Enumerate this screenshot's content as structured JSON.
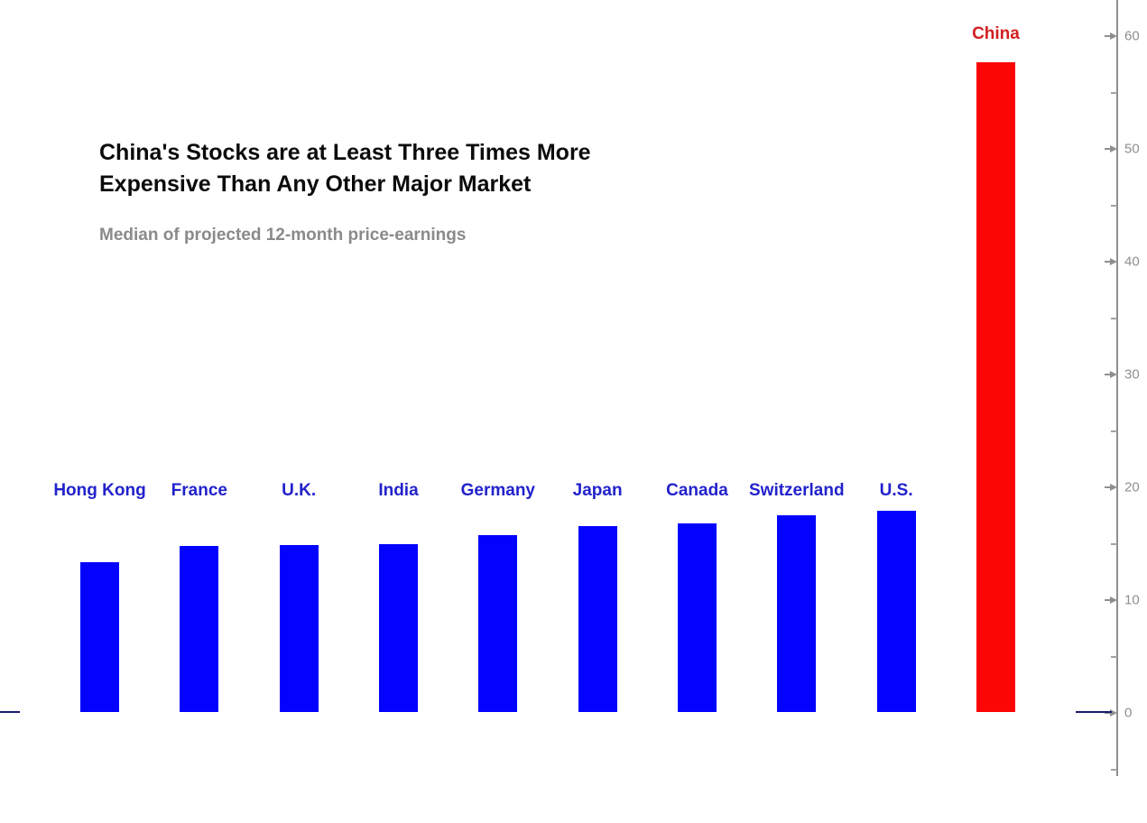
{
  "header": {
    "title_line1": "China's Stocks are at Least Three Times More",
    "title_line2": "Expensive Than Any Other Major Market",
    "subtitle": "Median of projected 12-month price-earnings"
  },
  "chart_data": {
    "type": "bar",
    "title": "China's Stocks are at Least Three Times More Expensive Than Any Other Major Market",
    "subtitle": "Median of projected 12-month price-earnings",
    "categories": [
      "Hong Kong",
      "France",
      "U.K.",
      "India",
      "Germany",
      "Japan",
      "Canada",
      "Switzerland",
      "U.S.",
      "China"
    ],
    "values": [
      13.4,
      14.8,
      14.9,
      15.0,
      15.8,
      16.6,
      16.8,
      17.5,
      17.9,
      57.7
    ],
    "highlight_category": "China",
    "xlabel": "",
    "ylabel": "",
    "grid": false,
    "legend": null,
    "yaxis": {
      "side": "right",
      "major_ticks": [
        0,
        10,
        20,
        30,
        40,
        50,
        60
      ],
      "minor_ticks": [
        -5,
        5,
        15,
        25,
        35,
        45,
        55
      ],
      "range_shown": [
        -6,
        63
      ]
    },
    "colors": {
      "bar_default": "#0202fe",
      "bar_highlight": "#fb0505",
      "label_default": "#2222cc",
      "label_highlight": "#d22020",
      "axis": "#8f8f8f",
      "zero_line": "#1a1a70"
    }
  }
}
